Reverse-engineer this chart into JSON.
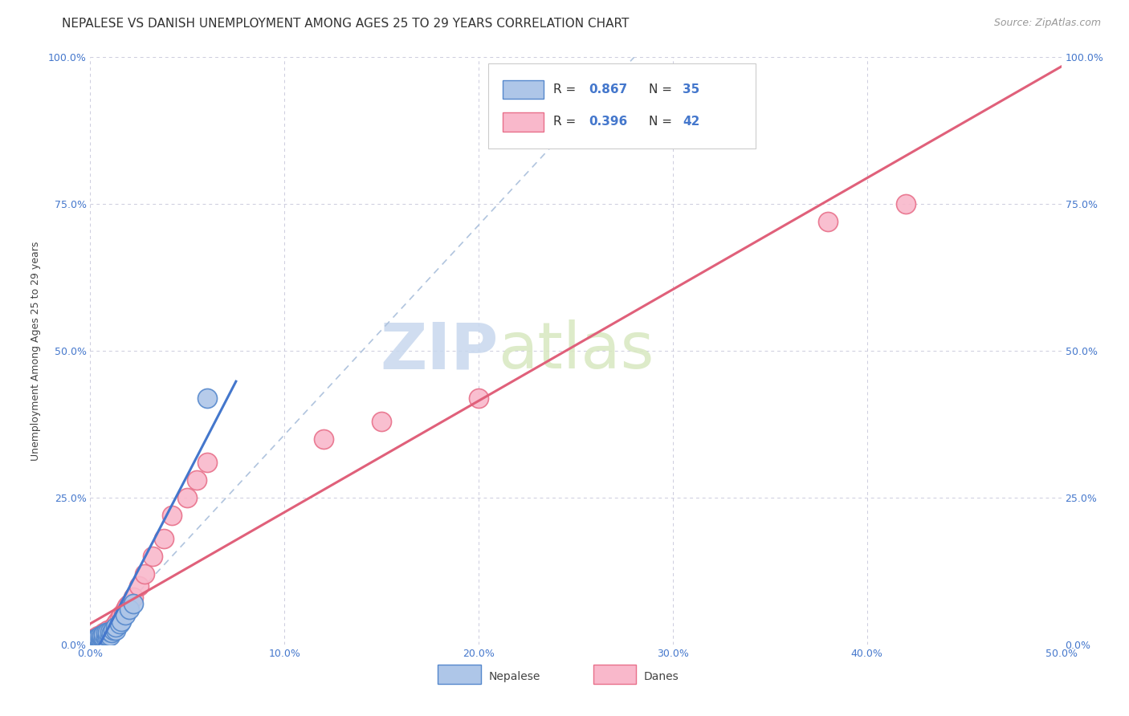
{
  "title": "NEPALESE VS DANISH UNEMPLOYMENT AMONG AGES 25 TO 29 YEARS CORRELATION CHART",
  "source": "Source: ZipAtlas.com",
  "ylabel": "Unemployment Among Ages 25 to 29 years",
  "x_tick_labels": [
    "0.0%",
    "10.0%",
    "20.0%",
    "30.0%",
    "40.0%",
    "50.0%"
  ],
  "y_tick_labels": [
    "0.0%",
    "25.0%",
    "50.0%",
    "75.0%",
    "100.0%"
  ],
  "x_tick_vals": [
    0.0,
    0.1,
    0.2,
    0.3,
    0.4,
    0.5
  ],
  "y_tick_vals": [
    0.0,
    0.25,
    0.5,
    0.75,
    1.0
  ],
  "xlim": [
    0.0,
    0.5
  ],
  "ylim": [
    0.0,
    1.0
  ],
  "legend_r1": "0.867",
  "legend_n1": "35",
  "legend_r2": "0.396",
  "legend_n2": "42",
  "legend_label1": "Nepalese",
  "legend_label2": "Danes",
  "watermark_zip": "ZIP",
  "watermark_atlas": "atlas",
  "nepalese_color": "#aec6e8",
  "danish_color": "#f9b8cb",
  "nepalese_edge_color": "#5588cc",
  "danish_edge_color": "#e8708a",
  "trend_nepalese_color": "#4477cc",
  "trend_danish_color": "#e0607a",
  "ref_line_color": "#b0c4de",
  "nepalese_x": [
    0.001,
    0.001,
    0.002,
    0.002,
    0.003,
    0.003,
    0.003,
    0.004,
    0.004,
    0.004,
    0.005,
    0.005,
    0.005,
    0.006,
    0.006,
    0.006,
    0.007,
    0.007,
    0.008,
    0.008,
    0.008,
    0.009,
    0.009,
    0.01,
    0.01,
    0.011,
    0.012,
    0.013,
    0.013,
    0.015,
    0.016,
    0.018,
    0.02,
    0.022,
    0.06
  ],
  "nepalese_y": [
    0.002,
    0.004,
    0.005,
    0.008,
    0.005,
    0.008,
    0.01,
    0.006,
    0.01,
    0.012,
    0.008,
    0.01,
    0.015,
    0.01,
    0.012,
    0.015,
    0.012,
    0.018,
    0.01,
    0.015,
    0.02,
    0.015,
    0.02,
    0.015,
    0.022,
    0.02,
    0.025,
    0.025,
    0.03,
    0.035,
    0.04,
    0.05,
    0.06,
    0.07,
    0.42
  ],
  "danish_x": [
    0.001,
    0.002,
    0.002,
    0.003,
    0.003,
    0.004,
    0.004,
    0.005,
    0.005,
    0.006,
    0.006,
    0.007,
    0.007,
    0.008,
    0.008,
    0.009,
    0.009,
    0.01,
    0.011,
    0.012,
    0.013,
    0.014,
    0.015,
    0.016,
    0.017,
    0.018,
    0.019,
    0.02,
    0.022,
    0.025,
    0.028,
    0.032,
    0.038,
    0.042,
    0.05,
    0.055,
    0.06,
    0.12,
    0.15,
    0.2,
    0.38,
    0.42
  ],
  "danish_y": [
    0.005,
    0.008,
    0.01,
    0.01,
    0.012,
    0.012,
    0.015,
    0.01,
    0.015,
    0.012,
    0.018,
    0.015,
    0.02,
    0.015,
    0.022,
    0.018,
    0.025,
    0.02,
    0.025,
    0.03,
    0.035,
    0.04,
    0.045,
    0.05,
    0.055,
    0.06,
    0.065,
    0.07,
    0.08,
    0.1,
    0.12,
    0.15,
    0.18,
    0.22,
    0.25,
    0.28,
    0.31,
    0.35,
    0.38,
    0.42,
    0.72,
    0.75
  ],
  "title_fontsize": 11,
  "source_fontsize": 9,
  "axis_label_fontsize": 9,
  "tick_fontsize": 9,
  "legend_fontsize": 11,
  "watermark_fontsize_zip": 58,
  "watermark_fontsize_atlas": 58
}
